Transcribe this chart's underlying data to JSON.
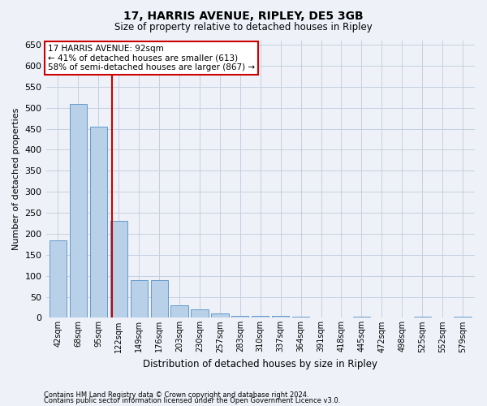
{
  "title": "17, HARRIS AVENUE, RIPLEY, DE5 3GB",
  "subtitle": "Size of property relative to detached houses in Ripley",
  "xlabel": "Distribution of detached houses by size in Ripley",
  "ylabel": "Number of detached properties",
  "footer1": "Contains HM Land Registry data © Crown copyright and database right 2024.",
  "footer2": "Contains public sector information licensed under the Open Government Licence v3.0.",
  "annotation_line1": "17 HARRIS AVENUE: 92sqm",
  "annotation_line2": "← 41% of detached houses are smaller (613)",
  "annotation_line3": "58% of semi-detached houses are larger (867) →",
  "bar_color": "#b8d0e8",
  "bar_edge_color": "#6699cc",
  "vline_color": "#cc0000",
  "vline_x": 3,
  "categories": [
    "42sqm",
    "68sqm",
    "95sqm",
    "122sqm",
    "149sqm",
    "176sqm",
    "203sqm",
    "230sqm",
    "257sqm",
    "283sqm",
    "310sqm",
    "337sqm",
    "364sqm",
    "391sqm",
    "418sqm",
    "445sqm",
    "472sqm",
    "498sqm",
    "525sqm",
    "552sqm",
    "579sqm"
  ],
  "values": [
    185,
    510,
    455,
    230,
    90,
    90,
    30,
    20,
    10,
    5,
    5,
    5,
    3,
    1,
    1,
    2,
    1,
    1,
    2,
    1,
    2
  ],
  "ylim": [
    0,
    660
  ],
  "yticks": [
    0,
    50,
    100,
    150,
    200,
    250,
    300,
    350,
    400,
    450,
    500,
    550,
    600,
    650
  ],
  "bg_color": "#eef2f8",
  "grid_color": "#c5d0e0",
  "box_facecolor": "#ffffff",
  "box_edgecolor": "#cc0000"
}
